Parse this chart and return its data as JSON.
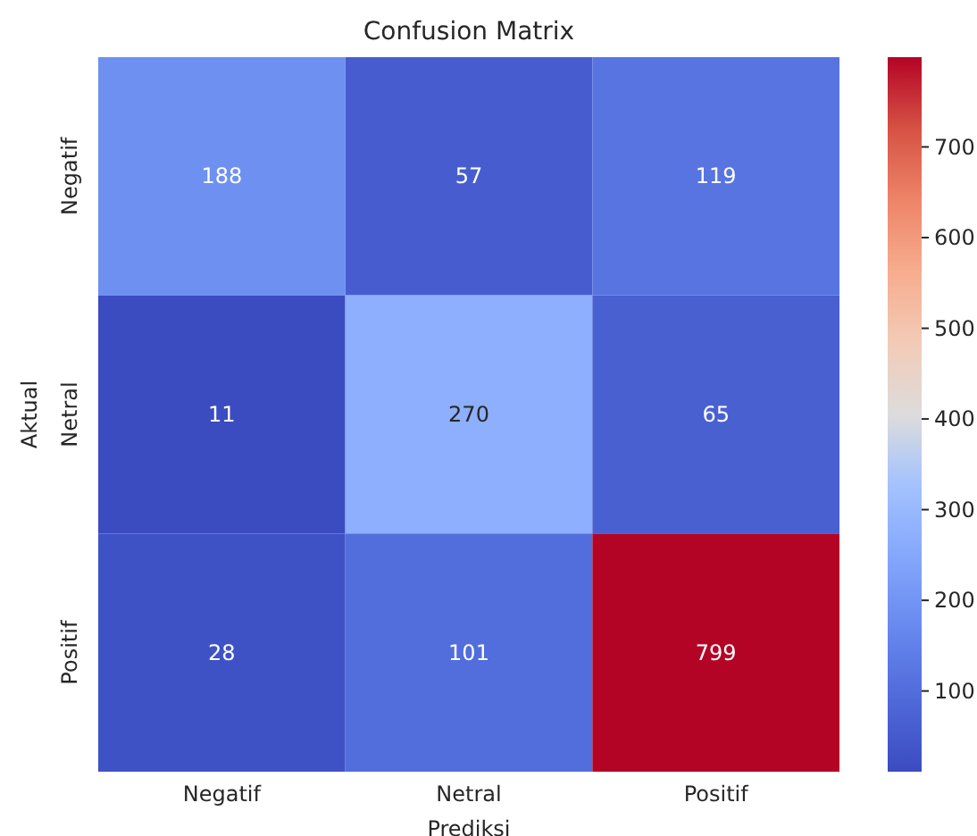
{
  "chart_data": {
    "type": "heatmap",
    "title": "Confusion Matrix",
    "xlabel": "Prediksi",
    "ylabel": "Aktual",
    "categories": [
      "Negatif",
      "Netral",
      "Positif"
    ],
    "y_categories": [
      "Negatif",
      "Netral",
      "Positif"
    ],
    "cells": [
      [
        188,
        57,
        119
      ],
      [
        11,
        270,
        65
      ],
      [
        28,
        101,
        799
      ]
    ],
    "clim": [
      11,
      799
    ],
    "cticks": [
      100,
      200,
      300,
      400,
      500,
      600,
      700
    ],
    "data_labels": true
  }
}
